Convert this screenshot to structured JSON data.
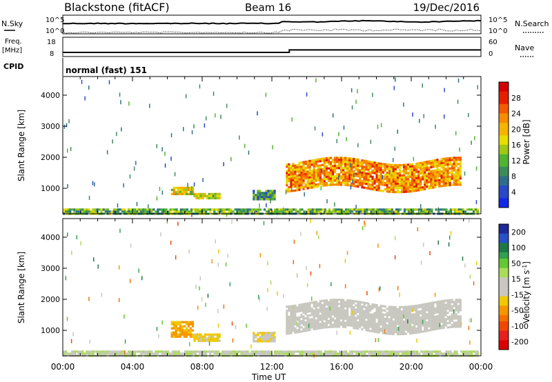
{
  "header": {
    "station": "Blackstone (fitACF)",
    "beam": "Beam 16",
    "date": "19/Dec/2016"
  },
  "top_panels": {
    "nsky": {
      "left_label": "N.Sky",
      "right_label": "N.Search",
      "left_ticks": [
        "10^5",
        "10^0"
      ],
      "right_ticks": [
        "10^5",
        "10^0"
      ]
    },
    "freq": {
      "left_label_line1": "Freq.",
      "left_label_line2": "[MHz]",
      "left_ticks": [
        "18",
        "8"
      ],
      "right_label": "Nave",
      "right_ticks": [
        "60",
        "0"
      ],
      "freq_before_mhz": 8,
      "freq_after_mhz": 10
    },
    "cpid": {
      "label": "CPID",
      "value": "normal (fast) 151"
    }
  },
  "colors": {
    "frame": "#000000",
    "power_scale": [
      "#1428e6",
      "#2848c8",
      "#2e6e8a",
      "#3c8c5a",
      "#50b432",
      "#a0c814",
      "#e6dc00",
      "#f5b400",
      "#f58c00",
      "#f55a00",
      "#e61e00",
      "#d20000"
    ],
    "velocity_scale": [
      "#1e2896",
      "#2850c8",
      "#1e7846",
      "#32a050",
      "#64c832",
      "#aadc5a",
      "#c8c8c0",
      "#c8c8c0",
      "#f0c800",
      "#f59600",
      "#f56e00",
      "#f04600",
      "#e61e1e",
      "#dc0000"
    ]
  },
  "chart_data": [
    {
      "type": "heatmap",
      "title": "Power [dB]",
      "xlabel": "",
      "ylabel": "Slant Range [km]",
      "xlim": [
        "00:00",
        "24:00"
      ],
      "x_ticks": [
        "00:00",
        "04:00",
        "08:00",
        "12:00",
        "16:00",
        "20:00",
        "00:00"
      ],
      "ylim": [
        180,
        4600
      ],
      "y_ticks": [
        1000,
        2000,
        3000,
        4000
      ],
      "colorbar": {
        "label": "Power [dB]",
        "range": [
          0,
          32
        ],
        "ticks": [
          4,
          8,
          12,
          16,
          20,
          24,
          28
        ]
      },
      "features": [
        {
          "name": "near ground scatter",
          "time_start_h": 0,
          "time_end_h": 23.8,
          "range_km": [
            200,
            350
          ],
          "value_db": 12
        },
        {
          "name": "morning patch A",
          "time_start_h": 6.2,
          "time_end_h": 7.5,
          "range_km": [
            800,
            1050
          ],
          "value_db": 18
        },
        {
          "name": "morning patch B",
          "time_start_h": 7.5,
          "time_end_h": 9.0,
          "range_km": [
            700,
            850
          ],
          "value_db": 16
        },
        {
          "name": "midday patch",
          "time_start_h": 10.9,
          "time_end_h": 12.2,
          "range_km": [
            650,
            950
          ],
          "value_db": 10
        },
        {
          "name": "evening band",
          "time_start_h": 12.8,
          "time_end_h": 22.8,
          "range_km": [
            1000,
            1900
          ],
          "value_db": 22
        }
      ]
    },
    {
      "type": "heatmap",
      "title": "Velocity [m s^-1]",
      "xlabel": "Time UT",
      "ylabel": "Slant Range [km]",
      "xlim": [
        "00:00",
        "24:00"
      ],
      "x_ticks": [
        "00:00",
        "04:00",
        "08:00",
        "12:00",
        "16:00",
        "20:00",
        "00:00"
      ],
      "ylim": [
        180,
        4600
      ],
      "y_ticks": [
        1000,
        2000,
        3000,
        4000
      ],
      "colorbar": {
        "label": "Velocity [m s",
        "label_sup": "-1",
        "label_end": "]",
        "range": [
          -240,
          240
        ],
        "ticks": [
          200,
          100,
          50,
          15,
          -15,
          -50,
          -100,
          -200
        ]
      },
      "features": [
        {
          "name": "near ground scatter",
          "time_start_h": 0,
          "time_end_h": 23.8,
          "range_km": [
            200,
            350
          ],
          "value_ms": 30
        },
        {
          "name": "morning patch A",
          "time_start_h": 6.2,
          "time_end_h": 7.5,
          "range_km": [
            800,
            1300
          ],
          "value_ms": -70
        },
        {
          "name": "morning patch B",
          "time_start_h": 7.5,
          "time_end_h": 9.0,
          "range_km": [
            700,
            900
          ],
          "value_ms": -40
        },
        {
          "name": "midday patch",
          "time_start_h": 10.9,
          "time_end_h": 12.2,
          "range_km": [
            650,
            950
          ],
          "value_ms": -30
        },
        {
          "name": "evening band",
          "time_start_h": 12.8,
          "time_end_h": 22.8,
          "range_km": [
            1000,
            1900
          ],
          "value_ms": 0
        }
      ]
    }
  ]
}
